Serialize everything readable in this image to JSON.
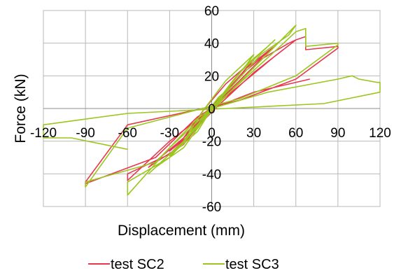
{
  "chart_data": {
    "type": "line",
    "title": "",
    "xlabel": "Displacement (mm)",
    "ylabel": "Force (kN)",
    "xlim": [
      -120,
      120
    ],
    "ylim": [
      -60,
      60
    ],
    "x_ticks": [
      "-120",
      "-90",
      "-60",
      "-30",
      "0",
      "30",
      "60",
      "90",
      "120"
    ],
    "y_ticks": [
      "60",
      "40",
      "20",
      "0",
      "-20",
      "-40",
      "-60"
    ],
    "grid": true,
    "legend_position": "bottom",
    "series": [
      {
        "name": "test SC2",
        "color": "#e8384f",
        "x": [
          0,
          5,
          10,
          15,
          5,
          -5,
          -10,
          -15,
          -5,
          0,
          15,
          25,
          30,
          10,
          -5,
          -20,
          -30,
          -10,
          0,
          25,
          40,
          45,
          20,
          0,
          -20,
          -40,
          -45,
          -20,
          0,
          35,
          55,
          60,
          30,
          5,
          -30,
          -60,
          -60,
          -30,
          0,
          45,
          60,
          67,
          67,
          90,
          90,
          60,
          20,
          -60,
          -90,
          -90,
          -40,
          -10,
          0,
          30,
          70
        ],
        "y": [
          0,
          3,
          8,
          12,
          6,
          -3,
          -8,
          -12,
          -6,
          0,
          15,
          25,
          30,
          15,
          0,
          -18,
          -26,
          -12,
          0,
          25,
          35,
          38,
          20,
          0,
          -22,
          -33,
          -36,
          -18,
          0,
          30,
          40,
          42,
          22,
          2,
          -28,
          -40,
          -44,
          -20,
          0,
          32,
          42,
          44,
          36,
          38,
          37,
          18,
          5,
          -10,
          -45,
          -46,
          -30,
          -5,
          0,
          10,
          18
        ]
      },
      {
        "name": "test SC3",
        "color": "#9bc61e",
        "x": [
          0,
          5,
          10,
          15,
          5,
          -5,
          -10,
          -15,
          -5,
          0,
          15,
          25,
          30,
          10,
          -5,
          -20,
          -30,
          -10,
          0,
          25,
          40,
          45,
          20,
          0,
          -20,
          -40,
          -45,
          -20,
          0,
          35,
          55,
          60,
          30,
          5,
          -30,
          -60,
          -60,
          -30,
          0,
          45,
          60,
          67,
          67,
          90,
          90,
          60,
          20,
          -60,
          -90,
          -90,
          -40,
          -10,
          0,
          40,
          90,
          100,
          105,
          118,
          120,
          120,
          80,
          10,
          -60,
          -120,
          -120,
          -100,
          -60
        ],
        "y": [
          0,
          4,
          10,
          14,
          7,
          -4,
          -10,
          -14,
          -7,
          0,
          17,
          27,
          33,
          17,
          0,
          -20,
          -29,
          -14,
          0,
          27,
          38,
          42,
          22,
          0,
          -24,
          -36,
          -40,
          -20,
          0,
          33,
          45,
          51,
          25,
          3,
          -30,
          -45,
          -53,
          -24,
          0,
          35,
          47,
          49,
          38,
          40,
          39,
          20,
          6,
          -12,
          -48,
          -45,
          -33,
          -6,
          0,
          10,
          18,
          20,
          18,
          16,
          16,
          10,
          3,
          0,
          -3,
          -10,
          -18,
          -18,
          -25
        ]
      }
    ]
  }
}
